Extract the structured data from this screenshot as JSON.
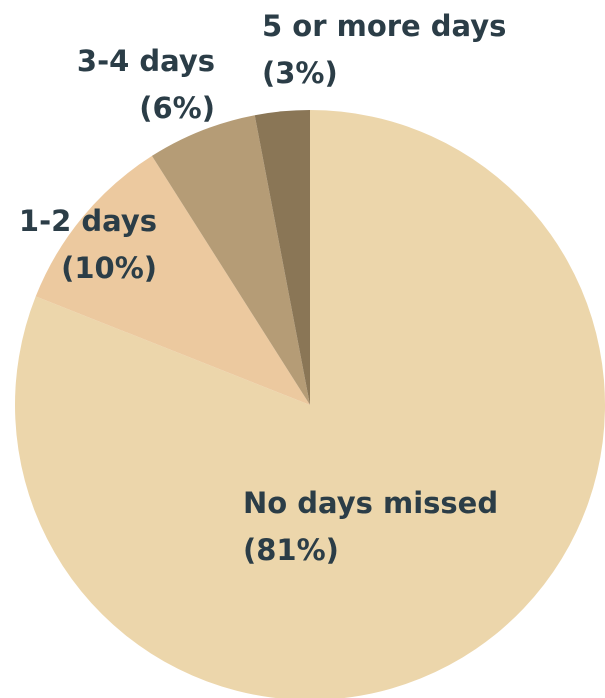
{
  "chart_data": {
    "type": "pie",
    "categories": [
      "No days missed",
      "1-2 days",
      "3-4 days",
      "5 or more days"
    ],
    "values": [
      81,
      10,
      6,
      3
    ],
    "value_labels": [
      "(81%)",
      "(10%)",
      "(6%)",
      "(3%)"
    ],
    "colors": [
      "#ecd6ab",
      "#ecc99f",
      "#b59c76",
      "#8a7656"
    ]
  }
}
